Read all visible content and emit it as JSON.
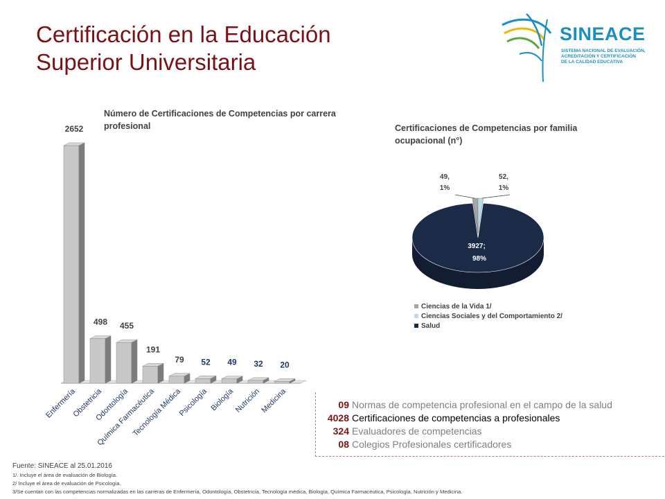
{
  "header": {
    "title_line1": "Certificación en la Educación",
    "title_line2": "Superior Universitaria"
  },
  "logo": {
    "name": "SINEACE",
    "subtitle_line1": "SISTEMA NACIONAL DE EVALUACIÓN,",
    "subtitle_line2": "ACREDITACIÓN Y CERTIFICACIÓN",
    "subtitle_line3": "DE LA CALIDAD EDUCATIVA",
    "color": "#1c8fc2"
  },
  "chart_data": [
    {
      "type": "bar",
      "title": "Número de Certificaciones de Competencias por carrera profesional",
      "categories": [
        "Enfermería",
        "Obstetricia",
        "Odontología",
        "Química Farmacéutica",
        "Tecnología Médica",
        "Psicología",
        "Biología",
        "Nutrición",
        "Medicina"
      ],
      "values": [
        2652,
        498,
        455,
        191,
        79,
        52,
        49,
        32,
        20
      ],
      "value_label_colors": [
        "#404040",
        "#404040",
        "#404040",
        "#404040",
        "#404040",
        "#1f3864",
        "#1f3864",
        "#1f3864",
        "#1f3864"
      ],
      "bar_color": "#c8c8c8",
      "ylim": [
        0,
        2652
      ],
      "grid": false
    },
    {
      "type": "pie",
      "title": "Certificaciones de Competencias por familia ocupacional (n°)",
      "labels": [
        "Ciencias de la Vida 1/",
        "Ciencias Sociales y del Comportamiento 2/",
        "Salud"
      ],
      "values": [
        49,
        52,
        3927
      ],
      "percent": [
        1,
        1,
        98
      ],
      "data_labels": [
        "49,",
        "52,",
        "3927;"
      ],
      "percent_labels": [
        "1%",
        "1%",
        "98%"
      ],
      "colors": [
        "#a6a6a6",
        "#b7dee8",
        "#1b2a47"
      ],
      "legend_position": "bottom-left"
    }
  ],
  "stats": [
    {
      "number": "09",
      "label": "Normas de competencia profesional en el campo de la salud"
    },
    {
      "number": "4028",
      "label": "Certificaciones de competencias a profesionales"
    },
    {
      "number": "324",
      "label": "Evaluadores de competencias"
    },
    {
      "number": "08",
      "label": "Colegios Profesionales certificadores"
    }
  ],
  "footer": {
    "source": "Fuente: SINEACE al  25.01.2016",
    "note1": "1/. Incluye  el área de evaluación de Biología.",
    "note2": "2/ Incluye  el área de evaluación de Psicología.",
    "note3": "3/Se cuentan con las competencias normalizadas en las carreras de Enfermería, Odontología, Obstetricia, Tecnología médica, Biología, Química Farmacéutica, Psicología, Nutrición y Medicina."
  }
}
